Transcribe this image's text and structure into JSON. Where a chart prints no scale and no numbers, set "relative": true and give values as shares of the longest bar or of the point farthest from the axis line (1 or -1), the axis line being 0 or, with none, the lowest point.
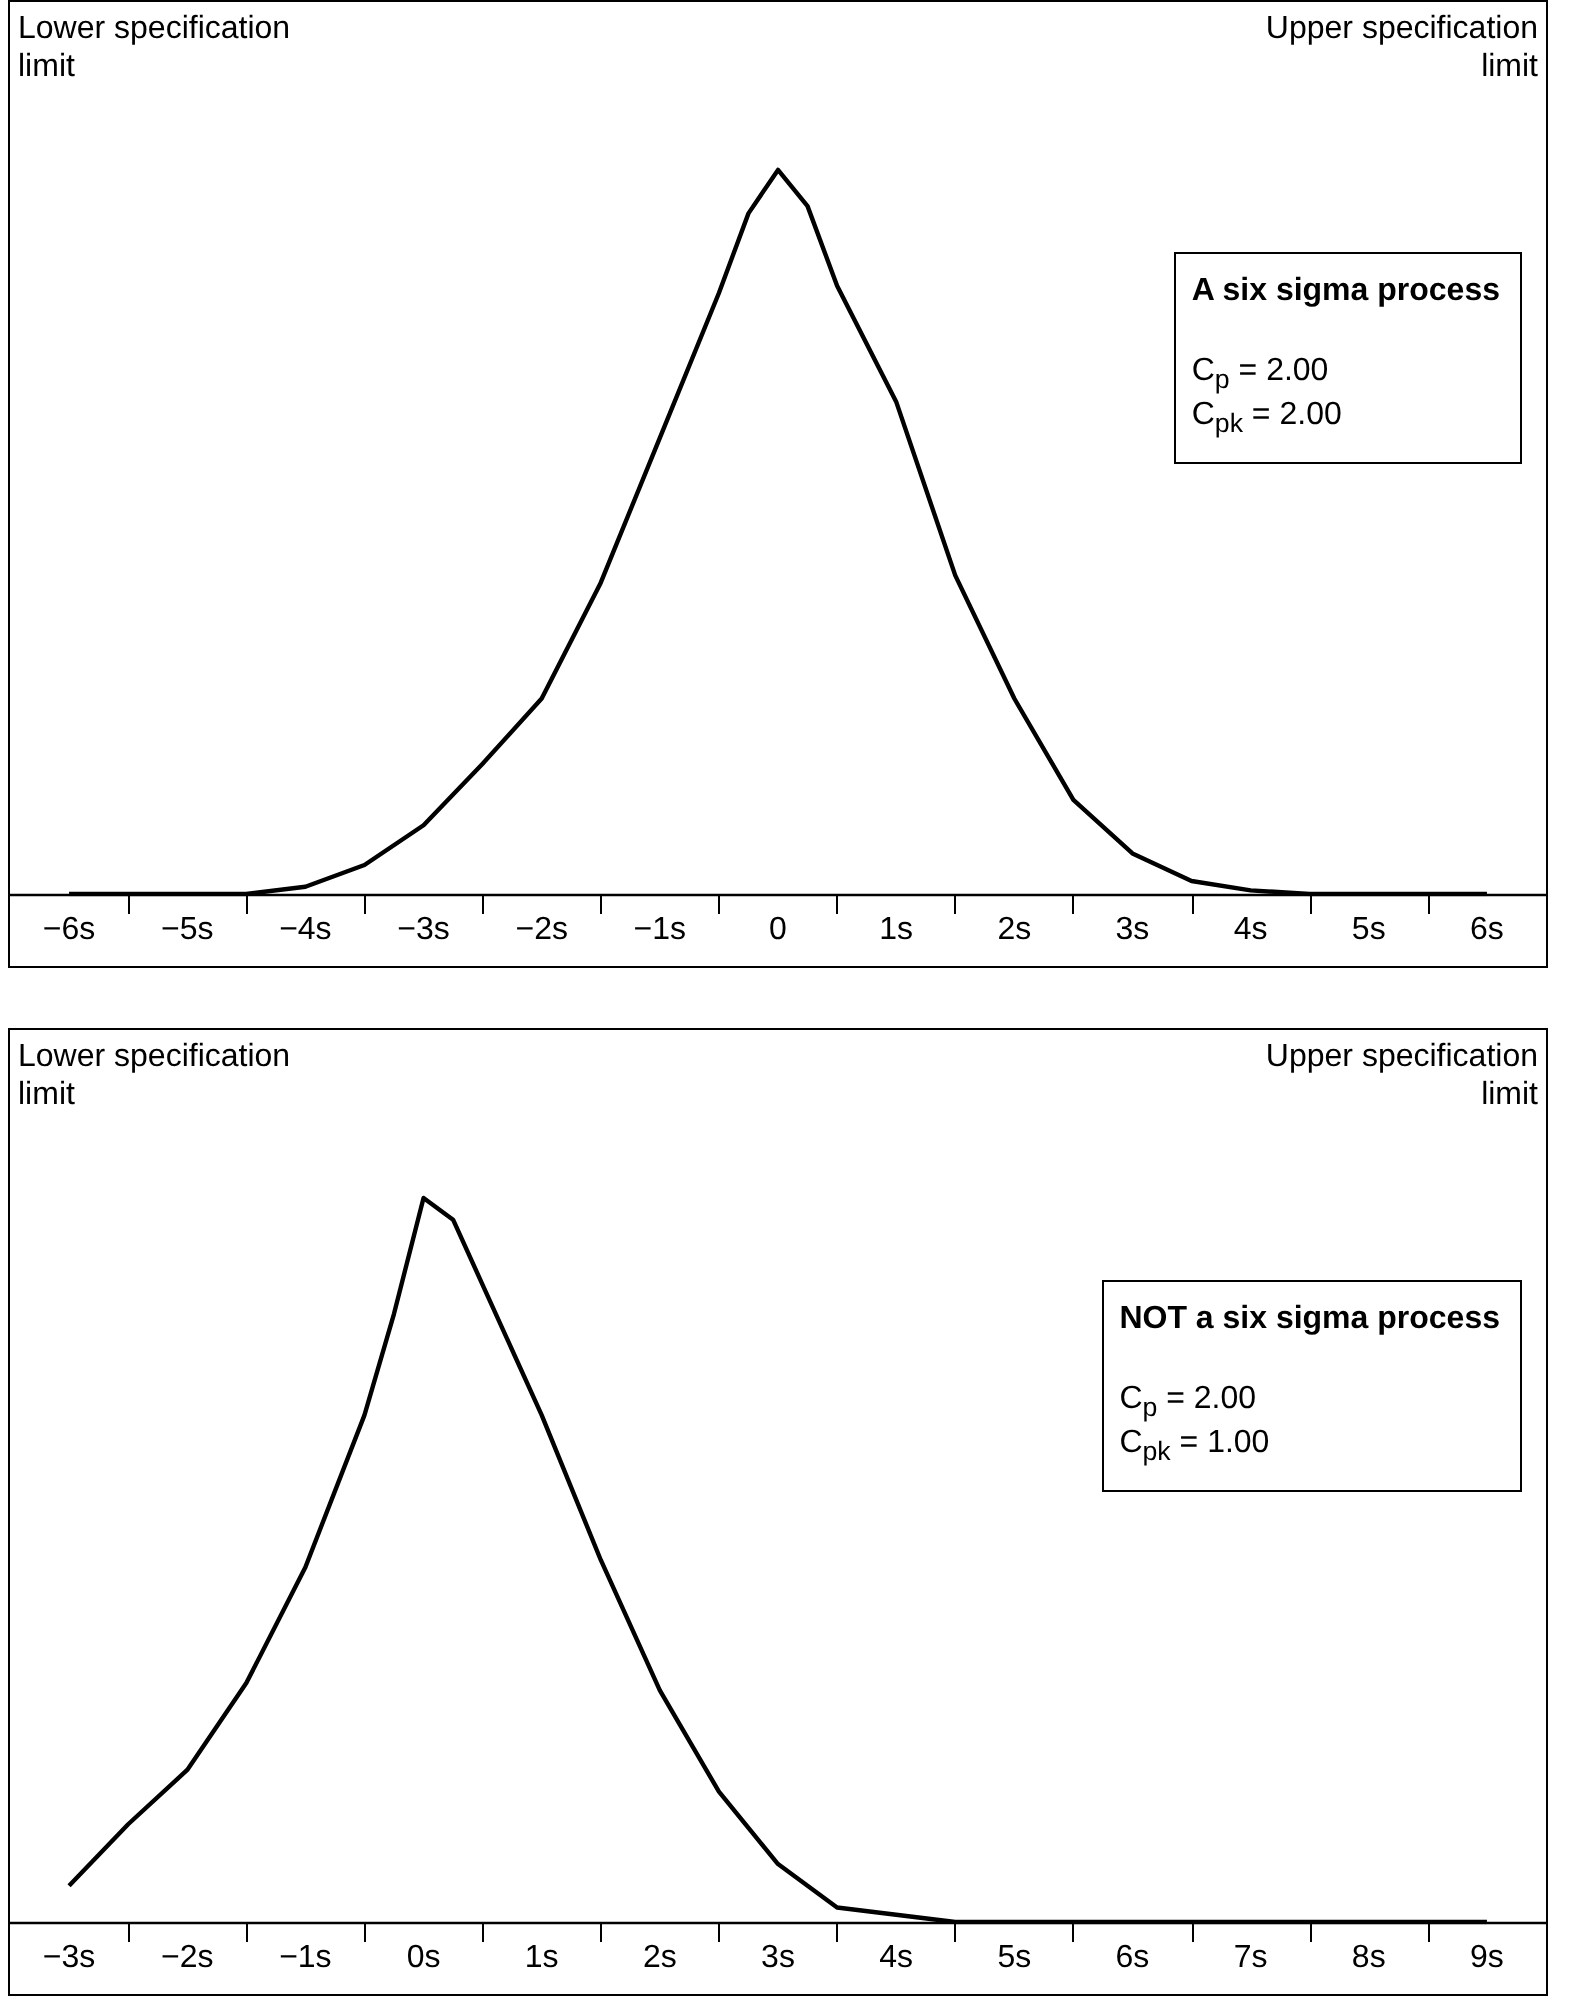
{
  "chart_data": [
    {
      "type": "line",
      "relative": true,
      "grid": false,
      "annotations": [
        "Lower specification limit",
        "Upper specification limit",
        "A six sigma process",
        "C$_{p}$ = 2.00",
        "C$_{pk}$ = 2.00"
      ],
      "x": [
        -6,
        -5.5,
        -5,
        -4.5,
        -4,
        -3.5,
        -3,
        -2.5,
        -2,
        -1.5,
        -1,
        -0.5,
        -0.25,
        0,
        0.25,
        0.5,
        1,
        1.5,
        2,
        2.5,
        3,
        3.5,
        4,
        4.5,
        5,
        5.5,
        6
      ],
      "xlim": [
        -6.5,
        6.5
      ],
      "xticks": [
        {
          "value": -6,
          "label": "−6s"
        },
        {
          "value": -5,
          "label": "−5s"
        },
        {
          "value": -4,
          "label": "−4s"
        },
        {
          "value": -3,
          "label": "−3s"
        },
        {
          "value": -2,
          "label": "−2s"
        },
        {
          "value": -1,
          "label": "−1s"
        },
        {
          "value": 0,
          "label": "0"
        },
        {
          "value": 1,
          "label": "1s"
        },
        {
          "value": 2,
          "label": "2s"
        },
        {
          "value": 3,
          "label": "3s"
        },
        {
          "value": 4,
          "label": "4s"
        },
        {
          "value": 5,
          "label": "5s"
        },
        {
          "value": 6,
          "label": "6s"
        },
        {
          "value": -5.5,
          "label": null
        },
        {
          "value": -4.5,
          "label": null
        },
        {
          "value": -3.5,
          "label": null
        },
        {
          "value": -2.5,
          "label": null
        },
        {
          "value": -1.5,
          "label": null
        },
        {
          "value": -0.5,
          "label": null
        },
        {
          "value": 0.5,
          "label": null
        },
        {
          "value": 1.5,
          "label": null
        },
        {
          "value": 2.5,
          "label": null
        },
        {
          "value": 3.5,
          "label": null
        },
        {
          "value": 4.5,
          "label": null
        },
        {
          "value": 5.5,
          "label": null
        }
      ],
      "series": [
        {
          "color": "#000000",
          "values": [
            0,
            0,
            0,
            0,
            0.01,
            0.04,
            0.095,
            0.18,
            0.27,
            0.43,
            0.63,
            0.83,
            0.94,
            1,
            0.95,
            0.84,
            0.68,
            0.44,
            0.27,
            0.13,
            0.056,
            0.018,
            0.005,
            0,
            0,
            0,
            0
          ]
        }
      ]
    },
    {
      "type": "line",
      "relative": true,
      "grid": false,
      "annotations": [
        "Lower specification limit",
        "Upper specification limit",
        "NOT a six sigma process",
        "C$_{p}$ = 2.00",
        "C$_{pk}$ = 1.00"
      ],
      "x": [
        -3,
        -2.5,
        -2,
        -1.5,
        -1,
        -0.5,
        -0.25,
        0,
        0.25,
        0.5,
        1,
        1.5,
        2,
        2.5,
        3,
        3.5,
        4,
        4.5,
        5,
        6,
        7,
        8,
        9
      ],
      "xlim": [
        -3.5,
        9.5
      ],
      "xticks": [
        {
          "value": -3,
          "label": "−3s"
        },
        {
          "value": -2,
          "label": "−2s"
        },
        {
          "value": -1,
          "label": "−1s"
        },
        {
          "value": 0,
          "label": "0s"
        },
        {
          "value": 1,
          "label": "1s"
        },
        {
          "value": 2,
          "label": "2s"
        },
        {
          "value": 3,
          "label": "3s"
        },
        {
          "value": 4,
          "label": "4s"
        },
        {
          "value": 5,
          "label": "5s"
        },
        {
          "value": 6,
          "label": "6s"
        },
        {
          "value": 7,
          "label": "7s"
        },
        {
          "value": 8,
          "label": "8s"
        },
        {
          "value": 9,
          "label": "9s"
        },
        {
          "value": -2.5,
          "label": null
        },
        {
          "value": -1.5,
          "label": null
        },
        {
          "value": -0.5,
          "label": null
        },
        {
          "value": 0.5,
          "label": null
        },
        {
          "value": 1.5,
          "label": null
        },
        {
          "value": 2.5,
          "label": null
        },
        {
          "value": 3.5,
          "label": null
        },
        {
          "value": 4.5,
          "label": null
        },
        {
          "value": 5.5,
          "label": null
        },
        {
          "value": 6.5,
          "label": null
        },
        {
          "value": 7.5,
          "label": null
        },
        {
          "value": 8.5,
          "label": null
        }
      ],
      "series": [
        {
          "color": "#000000",
          "values": [
            0.05,
            0.135,
            0.21,
            0.33,
            0.49,
            0.7,
            0.84,
            1,
            0.97,
            0.88,
            0.7,
            0.5,
            0.32,
            0.18,
            0.08,
            0.02,
            0.01,
            0,
            0,
            0,
            0,
            0,
            0
          ]
        }
      ]
    }
  ]
}
